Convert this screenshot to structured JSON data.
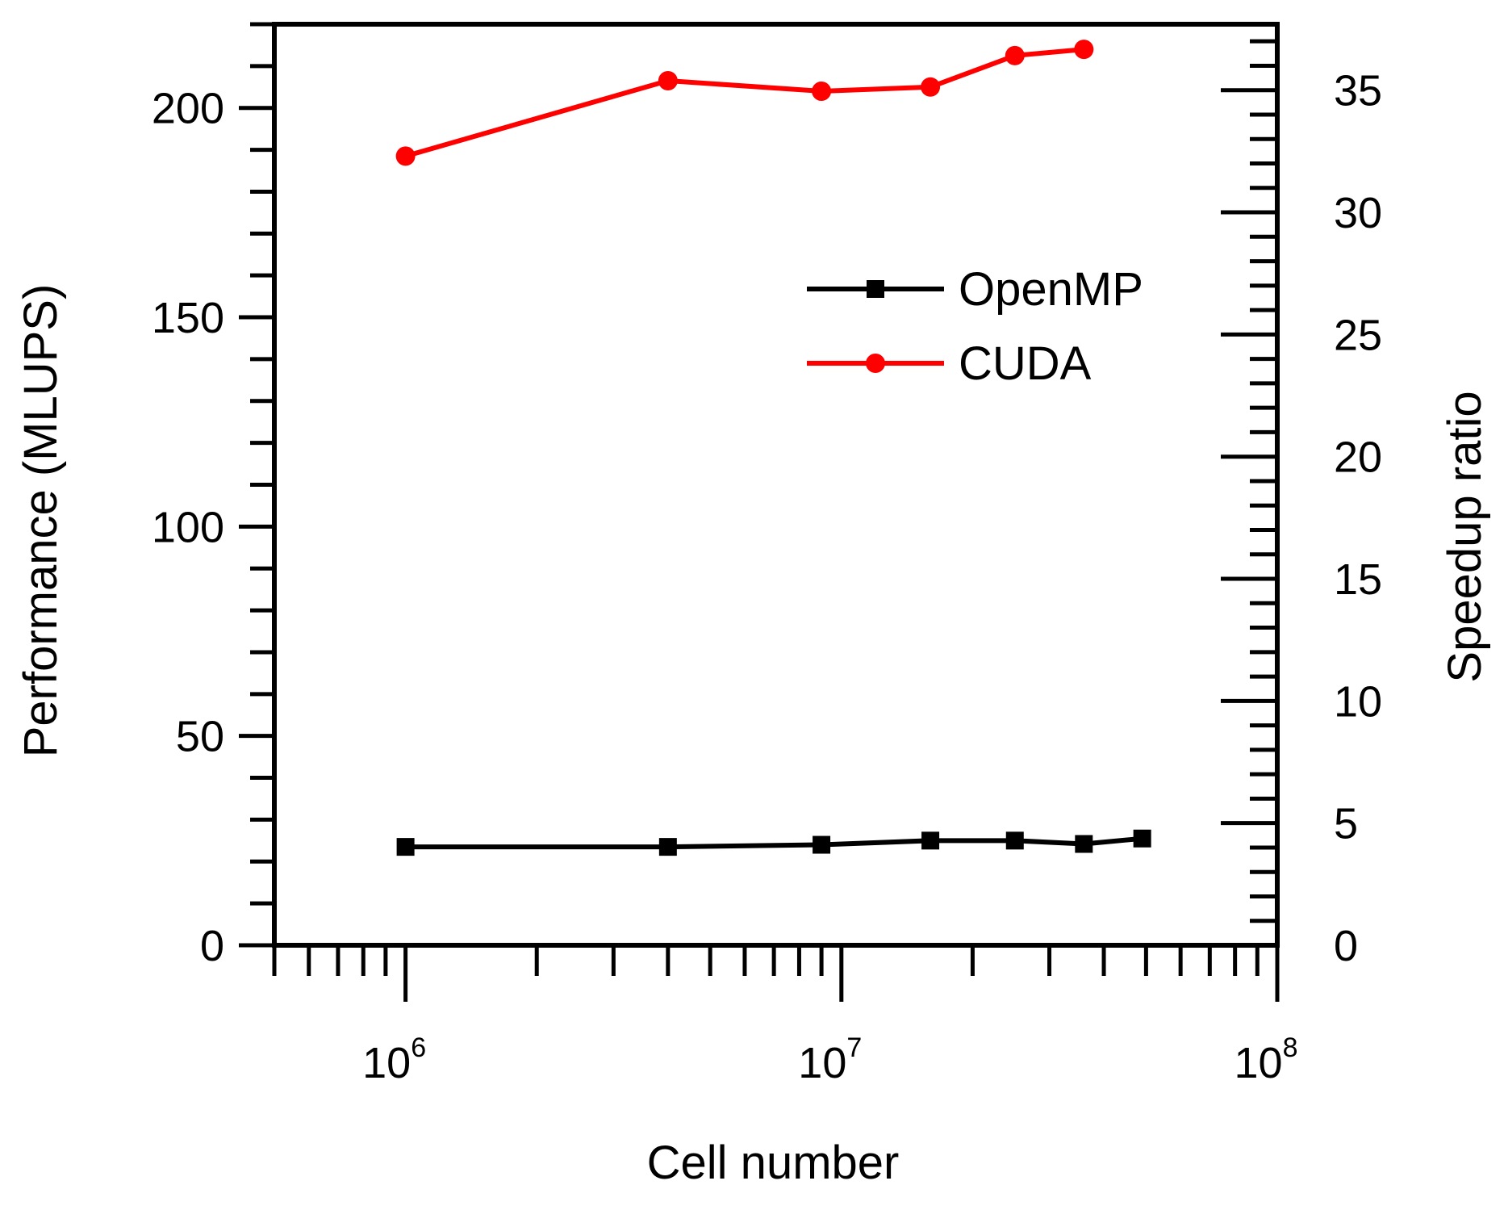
{
  "chart_data": {
    "type": "line",
    "x_scale": "log",
    "xlabel": "Cell number",
    "ylabel_left": "Performance (MLUPS)",
    "ylabel_right": "Speedup ratio",
    "xlim": [
      500000,
      100000000
    ],
    "ylim_left": [
      0,
      220
    ],
    "ylim_right": [
      0,
      37.7
    ],
    "x_ticks": [
      {
        "value": 1000000,
        "base": "10",
        "exp": "6"
      },
      {
        "value": 10000000,
        "base": "10",
        "exp": "7"
      },
      {
        "value": 100000000,
        "base": "10",
        "exp": "8"
      }
    ],
    "y_ticks_left": [
      "0",
      "50",
      "100",
      "150",
      "200"
    ],
    "y_ticks_right": [
      "0",
      "5",
      "10",
      "15",
      "20",
      "25",
      "30",
      "35"
    ],
    "legend_position": "right",
    "series": [
      {
        "name": "OpenMP",
        "axis": "left",
        "color": "#000000",
        "marker": "square",
        "x": [
          1000000,
          4000000,
          9000000,
          16000000,
          25000000,
          36000000,
          49000000
        ],
        "y": [
          23.5,
          23.5,
          24,
          25,
          25,
          24.2,
          25.5
        ]
      },
      {
        "name": "CUDA",
        "axis": "left",
        "color": "#ff0000",
        "marker": "circle",
        "x": [
          1000000,
          4000000,
          9000000,
          16000000,
          25000000,
          36000000
        ],
        "y": [
          188.5,
          206.5,
          204,
          205,
          212.5,
          214
        ]
      }
    ]
  }
}
